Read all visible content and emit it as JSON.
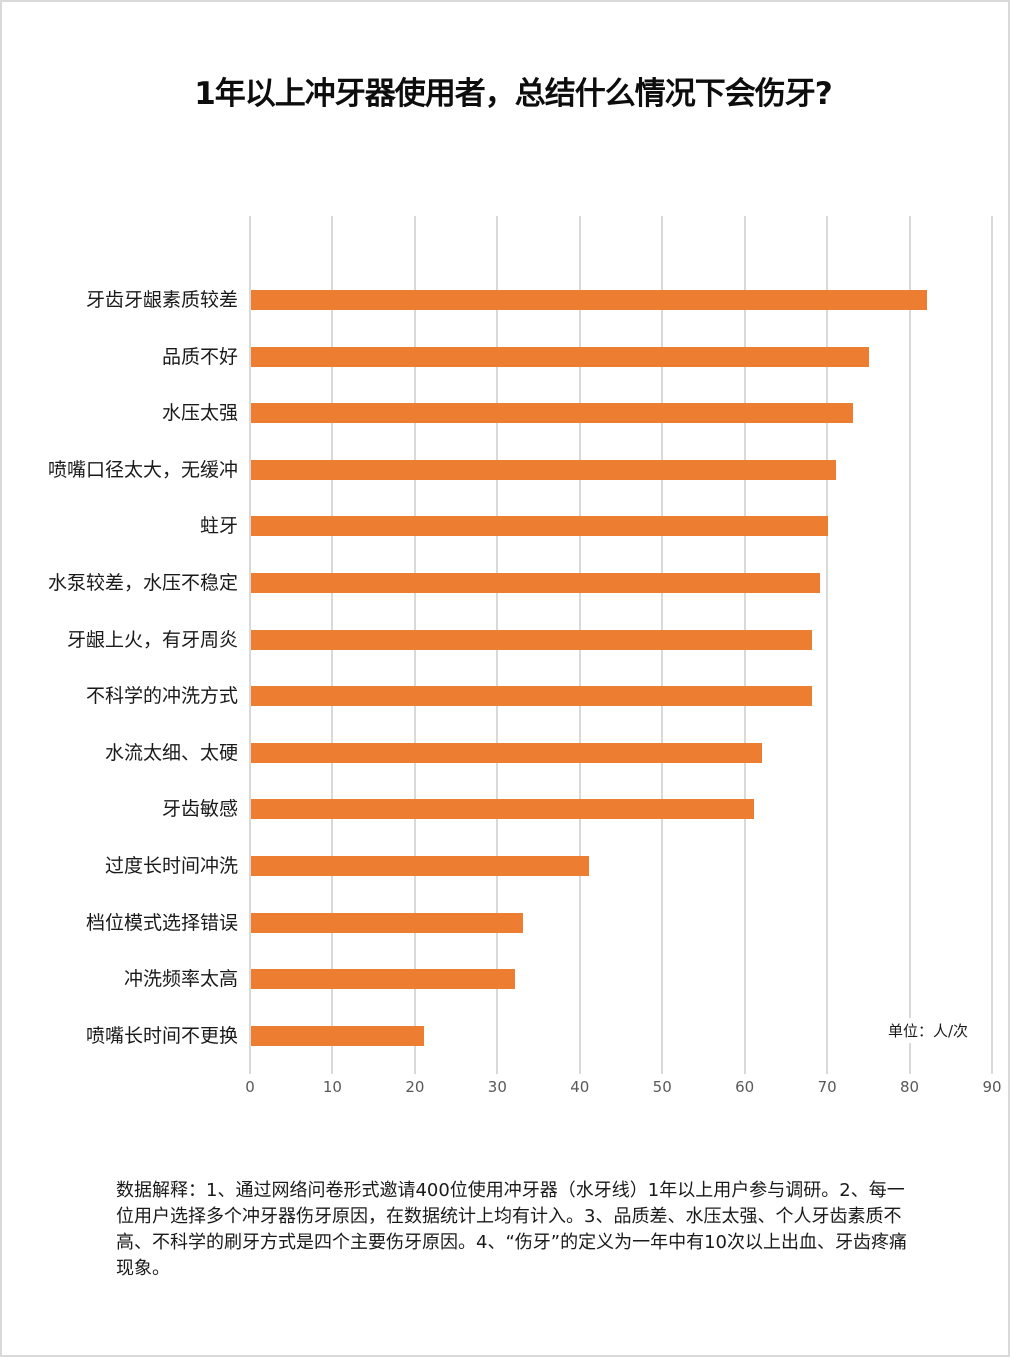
{
  "title": "1年以上冲牙器使用者，总结什么情况下会伤牙?",
  "unit_label": "单位：人/次",
  "notes": "数据解释：1、通过网络问卷形式邀请400位使用冲牙器（水牙线）1年以上用户参与调研。2、每一位用户选择多个冲牙器伤牙原因，在数据统计上均有计入。3、品质差、水压太强、个人牙齿素质不高、不科学的刷牙方式是四个主要伤牙原因。4、“伤牙”的定义为一年中有10次以上出血、牙齿疼痛现象。",
  "colors": {
    "bar": "#ed7d31",
    "grid": "#d9d9d9"
  },
  "chart_data": {
    "type": "bar",
    "orientation": "horizontal",
    "title": "1年以上冲牙器使用者，总结什么情况下会伤牙?",
    "xlabel": "",
    "ylabel": "",
    "unit": "人/次",
    "xlim": [
      0,
      90
    ],
    "x_ticks": [
      "0",
      "10",
      "20",
      "30",
      "40",
      "50",
      "60",
      "70",
      "80",
      "90"
    ],
    "grid": true,
    "legend": null,
    "categories": [
      "牙齿牙龈素质较差",
      "品质不好",
      "水压太强",
      "喷嘴口径太大，无缓冲",
      "蛀牙",
      "水泵较差，水压不稳定",
      "牙龈上火，有牙周炎",
      "不科学的冲洗方式",
      "水流太细、太硬",
      "牙齿敏感",
      "过度长时间冲洗",
      "档位模式选择错误",
      "冲洗频率太高",
      "喷嘴长时间不更换"
    ],
    "values": [
      82,
      75,
      73,
      71,
      70,
      69,
      68,
      68,
      62,
      61,
      41,
      33,
      32,
      21
    ]
  }
}
